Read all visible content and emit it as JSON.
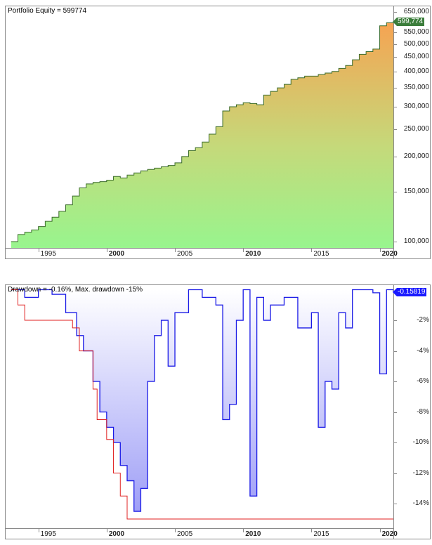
{
  "equity_panel": {
    "title": "Portfolio Equity = 599774",
    "current_value_label": "599,774",
    "badge_color": "#3b7d3b",
    "line_color": "#3a6b2a",
    "gradient_top": "#f6a352",
    "gradient_bottom": "#98f58e",
    "y_ticks": [
      "650,000",
      "550,000",
      "500,000",
      "450,000",
      "400,000",
      "350,000",
      "300,000",
      "250,000",
      "200,000",
      "150,000",
      "100,000"
    ],
    "x_ticks": [
      {
        "label": "1995",
        "bold": false
      },
      {
        "label": "2000",
        "bold": true
      },
      {
        "label": "2005",
        "bold": false
      },
      {
        "label": "2010",
        "bold": true
      },
      {
        "label": "2015",
        "bold": false
      },
      {
        "label": "2020",
        "bold": true
      }
    ]
  },
  "drawdown_panel": {
    "title": "Drawdown = -0.16%, Max. drawdown -15%",
    "current_value_label": "-0.15819",
    "badge_color": "#1a1aff",
    "line_color": "#1a1ae6",
    "maxdd_color": "#e02020",
    "y_ticks": [
      "-2%",
      "-4%",
      "-6%",
      "-8%",
      "-10%",
      "-12%",
      "-14%"
    ],
    "x_ticks": [
      {
        "label": "1995",
        "bold": false
      },
      {
        "label": "2000",
        "bold": true
      },
      {
        "label": "2005",
        "bold": false
      },
      {
        "label": "2010",
        "bold": true
      },
      {
        "label": "2015",
        "bold": false
      },
      {
        "label": "2020",
        "bold": true
      }
    ]
  },
  "chart_data": [
    {
      "type": "area",
      "title": "Portfolio Equity = 599774",
      "xlabel": "",
      "ylabel": "",
      "y_scale": "log",
      "ylim": [
        100000,
        650000
      ],
      "x": [
        1993.0,
        1993.5,
        1994.0,
        1994.5,
        1995.0,
        1995.5,
        1996.0,
        1996.5,
        1997.0,
        1997.5,
        1998.0,
        1998.5,
        1999.0,
        1999.5,
        2000.0,
        2000.5,
        2001.0,
        2001.5,
        2002.0,
        2002.5,
        2003.0,
        2003.5,
        2004.0,
        2004.5,
        2005.0,
        2005.5,
        2006.0,
        2006.5,
        2007.0,
        2007.5,
        2008.0,
        2008.5,
        2009.0,
        2009.5,
        2010.0,
        2010.5,
        2011.0,
        2011.5,
        2012.0,
        2012.5,
        2013.0,
        2013.5,
        2014.0,
        2014.5,
        2015.0,
        2015.5,
        2016.0,
        2016.5,
        2017.0,
        2017.5,
        2018.0,
        2018.5,
        2019.0,
        2019.5,
        2020.0,
        2020.5,
        2021.0
      ],
      "values": [
        100000,
        106000,
        108000,
        110000,
        113000,
        118000,
        122000,
        128000,
        135000,
        145000,
        155000,
        160000,
        162000,
        163000,
        165000,
        170000,
        168000,
        172000,
        175000,
        178000,
        180000,
        182000,
        184000,
        186000,
        190000,
        200000,
        210000,
        215000,
        225000,
        240000,
        255000,
        290000,
        300000,
        305000,
        310000,
        308000,
        305000,
        330000,
        340000,
        350000,
        360000,
        375000,
        380000,
        385000,
        385000,
        390000,
        395000,
        400000,
        410000,
        420000,
        440000,
        460000,
        470000,
        480000,
        580000,
        595000,
        599774
      ]
    },
    {
      "type": "area",
      "title": "Drawdown = -0.16%, Max. drawdown -15%",
      "xlabel": "",
      "ylabel": "",
      "ylim": [
        -15.5,
        0
      ],
      "series": [
        {
          "name": "Drawdown %",
          "x": [
            1993.0,
            1994.0,
            1995.0,
            1996.0,
            1997.0,
            1997.8,
            1998.3,
            1999.0,
            1999.5,
            2000.0,
            2000.5,
            2001.0,
            2001.5,
            2002.0,
            2002.5,
            2003.0,
            2003.5,
            2004.0,
            2004.5,
            2005.0,
            2006.0,
            2007.0,
            2008.0,
            2008.5,
            2009.0,
            2009.5,
            2010.0,
            2010.5,
            2011.0,
            2011.5,
            2012.0,
            2013.0,
            2014.0,
            2015.0,
            2015.5,
            2016.0,
            2016.5,
            2017.0,
            2017.5,
            2018.0,
            2019.0,
            2019.5,
            2020.0,
            2020.5,
            2021.0
          ],
          "values": [
            0,
            -0.5,
            0,
            -0.3,
            -1.5,
            -3.0,
            -4.0,
            -6.0,
            -8.0,
            -9.0,
            -10.0,
            -11.5,
            -12.5,
            -14.5,
            -13.0,
            -6.0,
            -3.0,
            -2.0,
            -5.0,
            -1.5,
            0,
            -0.5,
            -1.0,
            -8.5,
            -7.5,
            -2.0,
            0,
            -13.5,
            -0.5,
            -2.0,
            -1.0,
            -0.5,
            -2.5,
            -1.5,
            -9.0,
            -6.0,
            -6.5,
            -1.5,
            -2.5,
            0,
            0,
            -0.2,
            -5.5,
            0,
            -0.16
          ]
        },
        {
          "name": "Max drawdown %",
          "x": [
            1993.0,
            1993.5,
            1994.0,
            1997.5,
            1998.0,
            1999.0,
            1999.3,
            2000.0,
            2000.5,
            2001.0,
            2001.5,
            2021.0
          ],
          "values": [
            0,
            -1.0,
            -2.0,
            -2.5,
            -4.0,
            -6.5,
            -8.5,
            -9.8,
            -12.0,
            -13.5,
            -15.0,
            -15.0
          ]
        }
      ]
    }
  ]
}
